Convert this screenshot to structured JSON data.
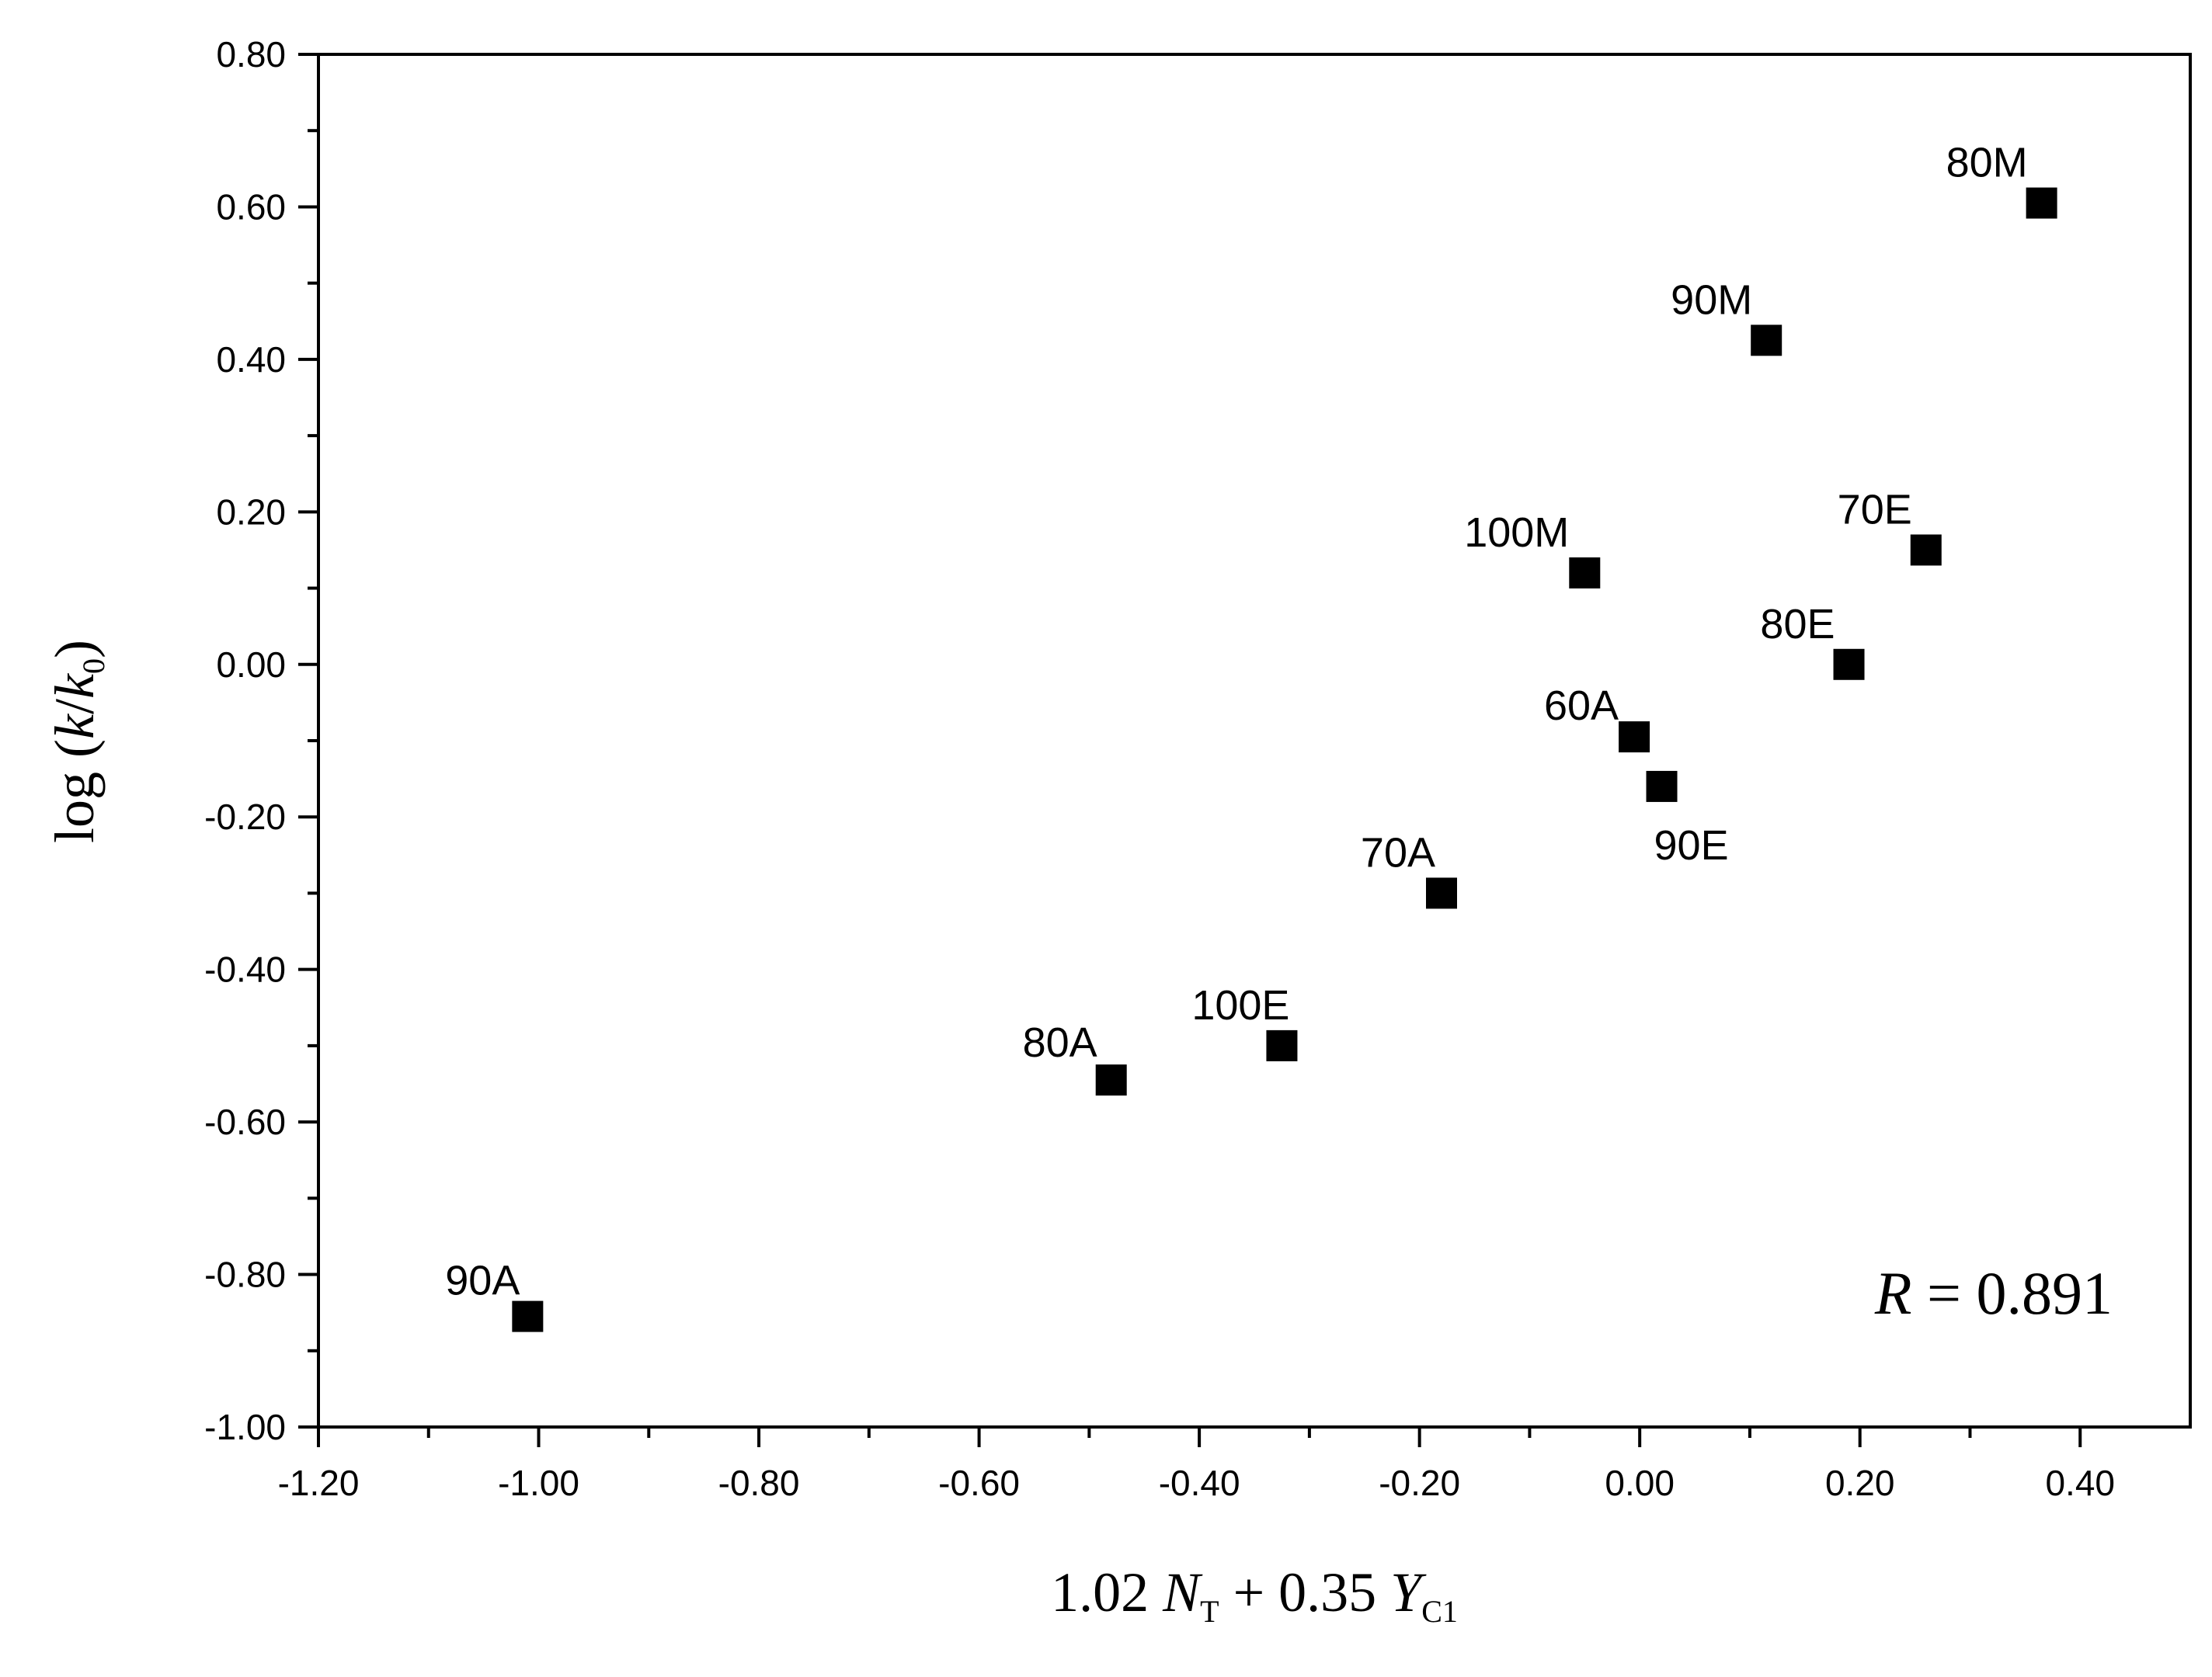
{
  "chart_data": {
    "type": "scatter",
    "xlim": [
      -1.2,
      0.5
    ],
    "ylim": [
      -1.0,
      0.8
    ],
    "x_ticks": [
      "-1.20",
      "-1.00",
      "-0.80",
      "-0.60",
      "-0.40",
      "-0.20",
      "0.00",
      "0.20",
      "0.40"
    ],
    "y_ticks": [
      "0.80",
      "0.60",
      "0.40",
      "0.20",
      "0.00",
      "-0.20",
      "-0.40",
      "-0.60",
      "-0.80",
      "-1.00"
    ],
    "xlabel": {
      "prefix": "1.02 ",
      "var1": "N",
      "sub1": "T",
      "middle": " + 0.35 ",
      "var2": "Y",
      "sub2": "C1"
    },
    "ylabel": {
      "prefix": "log (",
      "var1": "k",
      "slash": "/",
      "var2": "k",
      "sub": "0",
      "suffix": ")"
    },
    "annotation": {
      "var": "R",
      "text": " = 0.891"
    },
    "points": [
      {
        "label": "90A",
        "x": -1.01,
        "y": -0.855
      },
      {
        "label": "80A",
        "x": -0.48,
        "y": -0.545
      },
      {
        "label": "100E",
        "x": -0.325,
        "y": -0.5
      },
      {
        "label": "70A",
        "x": -0.18,
        "y": -0.3
      },
      {
        "label": "100M",
        "x": -0.05,
        "y": 0.12
      },
      {
        "label": "60A",
        "x": -0.005,
        "y": -0.095
      },
      {
        "label": "90E",
        "x": 0.02,
        "y": -0.16
      },
      {
        "label": "90M",
        "x": 0.115,
        "y": 0.425
      },
      {
        "label": "80E",
        "x": 0.19,
        "y": 0.0
      },
      {
        "label": "70E",
        "x": 0.26,
        "y": 0.15
      },
      {
        "label": "80M",
        "x": 0.365,
        "y": 0.605
      }
    ],
    "grid": false,
    "marker": "square",
    "marker_color": "#000000"
  }
}
